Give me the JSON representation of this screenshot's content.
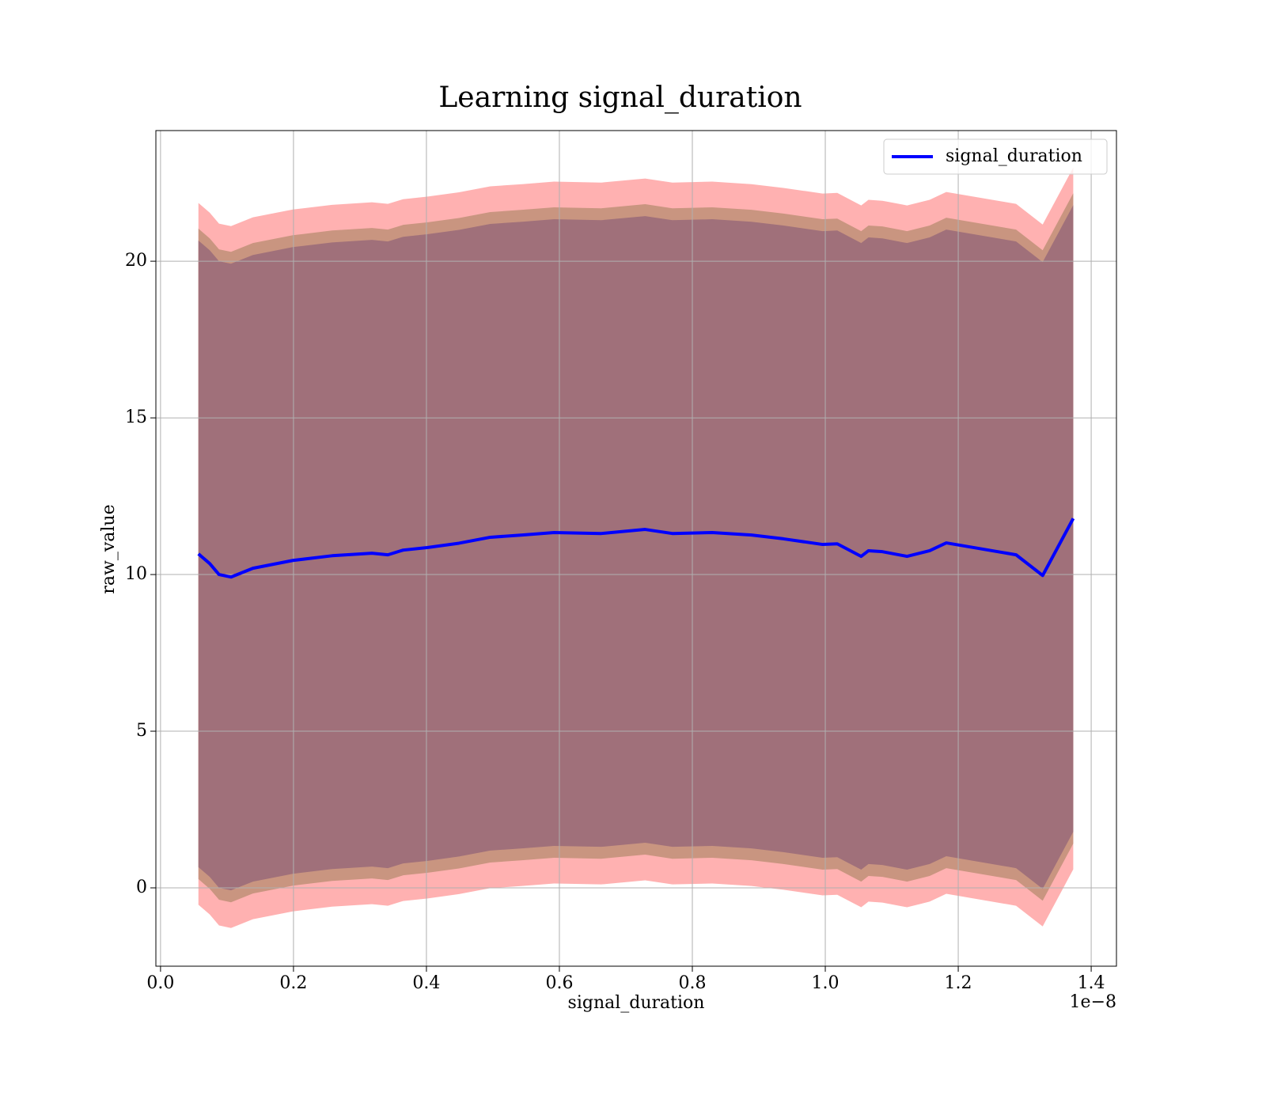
{
  "chart_data": {
    "type": "line",
    "title": "Learning signal_duration",
    "x_label": "signal_duration",
    "y_label": "raw_value",
    "x_offset_label": "1e−8",
    "x": [
      0.057,
      0.074,
      0.088,
      0.106,
      0.139,
      0.199,
      0.258,
      0.318,
      0.342,
      0.365,
      0.401,
      0.449,
      0.496,
      0.544,
      0.592,
      0.663,
      0.729,
      0.77,
      0.83,
      0.889,
      0.937,
      0.996,
      1.018,
      1.054,
      1.065,
      1.086,
      1.123,
      1.157,
      1.182,
      1.287,
      1.327,
      1.373
    ],
    "series": [
      {
        "name": "signal_duration",
        "color": "#0000ff",
        "values": [
          10.66,
          10.35,
          10.0,
          9.92,
          10.2,
          10.45,
          10.6,
          10.68,
          10.63,
          10.78,
          10.86,
          11.0,
          11.19,
          11.26,
          11.34,
          11.31,
          11.44,
          11.31,
          11.34,
          11.26,
          11.14,
          10.96,
          10.98,
          10.58,
          10.76,
          10.73,
          10.58,
          10.76,
          11.01,
          10.63,
          9.97,
          11.79
        ]
      }
    ],
    "bands": [
      {
        "color": "#ffb1b1",
        "upper": [
          21.86,
          21.55,
          21.2,
          21.12,
          21.4,
          21.65,
          21.8,
          21.88,
          21.83,
          21.98,
          22.06,
          22.2,
          22.39,
          22.46,
          22.54,
          22.51,
          22.64,
          22.51,
          22.54,
          22.46,
          22.34,
          22.16,
          22.18,
          21.78,
          21.96,
          21.93,
          21.78,
          21.96,
          22.21,
          21.83,
          21.17,
          22.99
        ],
        "lower": [
          -0.54,
          -0.85,
          -1.2,
          -1.28,
          -1.0,
          -0.75,
          -0.6,
          -0.52,
          -0.57,
          -0.42,
          -0.34,
          -0.2,
          -0.01,
          0.06,
          0.14,
          0.11,
          0.24,
          0.11,
          0.14,
          0.06,
          -0.06,
          -0.24,
          -0.22,
          -0.62,
          -0.44,
          -0.47,
          -0.62,
          -0.44,
          -0.19,
          -0.57,
          -1.23,
          0.59
        ]
      },
      {
        "color": "#c99580",
        "upper": [
          21.04,
          20.73,
          20.38,
          20.3,
          20.58,
          20.83,
          20.98,
          21.06,
          21.01,
          21.16,
          21.24,
          21.38,
          21.57,
          21.64,
          21.72,
          21.69,
          21.82,
          21.69,
          21.72,
          21.64,
          21.52,
          21.34,
          21.36,
          20.96,
          21.14,
          21.11,
          20.96,
          21.14,
          21.39,
          21.01,
          20.35,
          22.17
        ],
        "lower": [
          0.28,
          -0.03,
          -0.38,
          -0.46,
          -0.18,
          0.07,
          0.22,
          0.3,
          0.25,
          0.4,
          0.48,
          0.62,
          0.81,
          0.88,
          0.96,
          0.93,
          1.06,
          0.93,
          0.96,
          0.88,
          0.76,
          0.58,
          0.6,
          0.2,
          0.38,
          0.35,
          0.2,
          0.38,
          0.63,
          0.25,
          -0.41,
          1.41
        ]
      },
      {
        "color": "#a0707a",
        "upper": [
          20.66,
          20.35,
          20.0,
          19.92,
          20.2,
          20.45,
          20.6,
          20.68,
          20.63,
          20.78,
          20.86,
          21.0,
          21.19,
          21.26,
          21.34,
          21.31,
          21.44,
          21.31,
          21.34,
          21.26,
          21.14,
          20.96,
          20.98,
          20.58,
          20.76,
          20.73,
          20.58,
          20.76,
          21.01,
          20.63,
          19.97,
          21.79
        ],
        "lower": [
          0.66,
          0.35,
          0.0,
          -0.08,
          0.2,
          0.45,
          0.6,
          0.68,
          0.63,
          0.78,
          0.86,
          1.0,
          1.19,
          1.26,
          1.34,
          1.31,
          1.44,
          1.31,
          1.34,
          1.26,
          1.14,
          0.96,
          0.98,
          0.58,
          0.76,
          0.73,
          0.58,
          0.76,
          1.01,
          0.63,
          -0.03,
          1.79
        ]
      }
    ],
    "xlim": [
      -0.007,
      1.438
    ],
    "ylim": [
      -2.5,
      24.17
    ],
    "xticks": [
      {
        "value": 0,
        "label": "0.0"
      },
      0.2,
      0.4,
      0.6,
      0.8,
      {
        "value": 1,
        "label": "1.0"
      },
      1.2,
      1.4
    ],
    "yticks": [
      0,
      5,
      10,
      15,
      20
    ],
    "grid": true,
    "legend": "upper right"
  }
}
